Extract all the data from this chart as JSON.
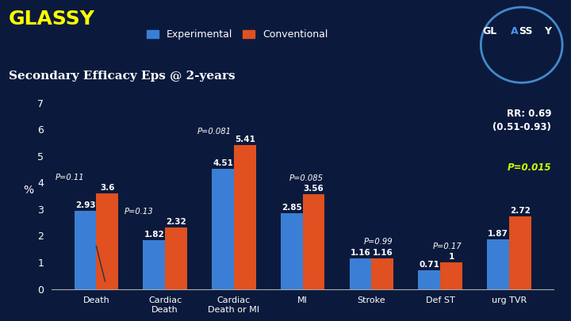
{
  "title_glassy": "GLASSY",
  "title_sub": "Secondary Efficacy Eps @ 2-years",
  "categories": [
    "Death",
    "Cardiac\nDeath",
    "Cardiac\nDeath or MI",
    "MI",
    "Stroke",
    "Def ST",
    "urg TVR"
  ],
  "experimental": [
    2.93,
    1.82,
    4.51,
    2.85,
    1.16,
    0.71,
    1.87
  ],
  "conventional": [
    3.6,
    2.32,
    5.41,
    3.56,
    1.16,
    1.0,
    2.72
  ],
  "p_values": [
    "P=0.11",
    "P=0.13",
    "P=0.081",
    "P=0.085",
    "P=0.99",
    "P=0.17",
    ""
  ],
  "p_xpos": [
    "left",
    "left",
    "left",
    "left",
    "right",
    "right",
    ""
  ],
  "rr_text": "RR: 0.69\n(0.51-0.93)",
  "rr_p": "P=0.015",
  "legend_exp": "Experimental",
  "legend_conv": "Conventional",
  "bar_color_exp": "#3a7fd5",
  "bar_color_conv": "#e05020",
  "background_color": "#0b1a3c",
  "text_color_white": "#ffffff",
  "title_color": "#ffff00",
  "sub_color": "#ffffff",
  "ylabel": "%",
  "ylim": [
    0,
    7
  ],
  "yticks": [
    0,
    1,
    2,
    3,
    4,
    5,
    6,
    7
  ],
  "rr_color": "#ffffff",
  "rr_p_color": "#ccff00"
}
